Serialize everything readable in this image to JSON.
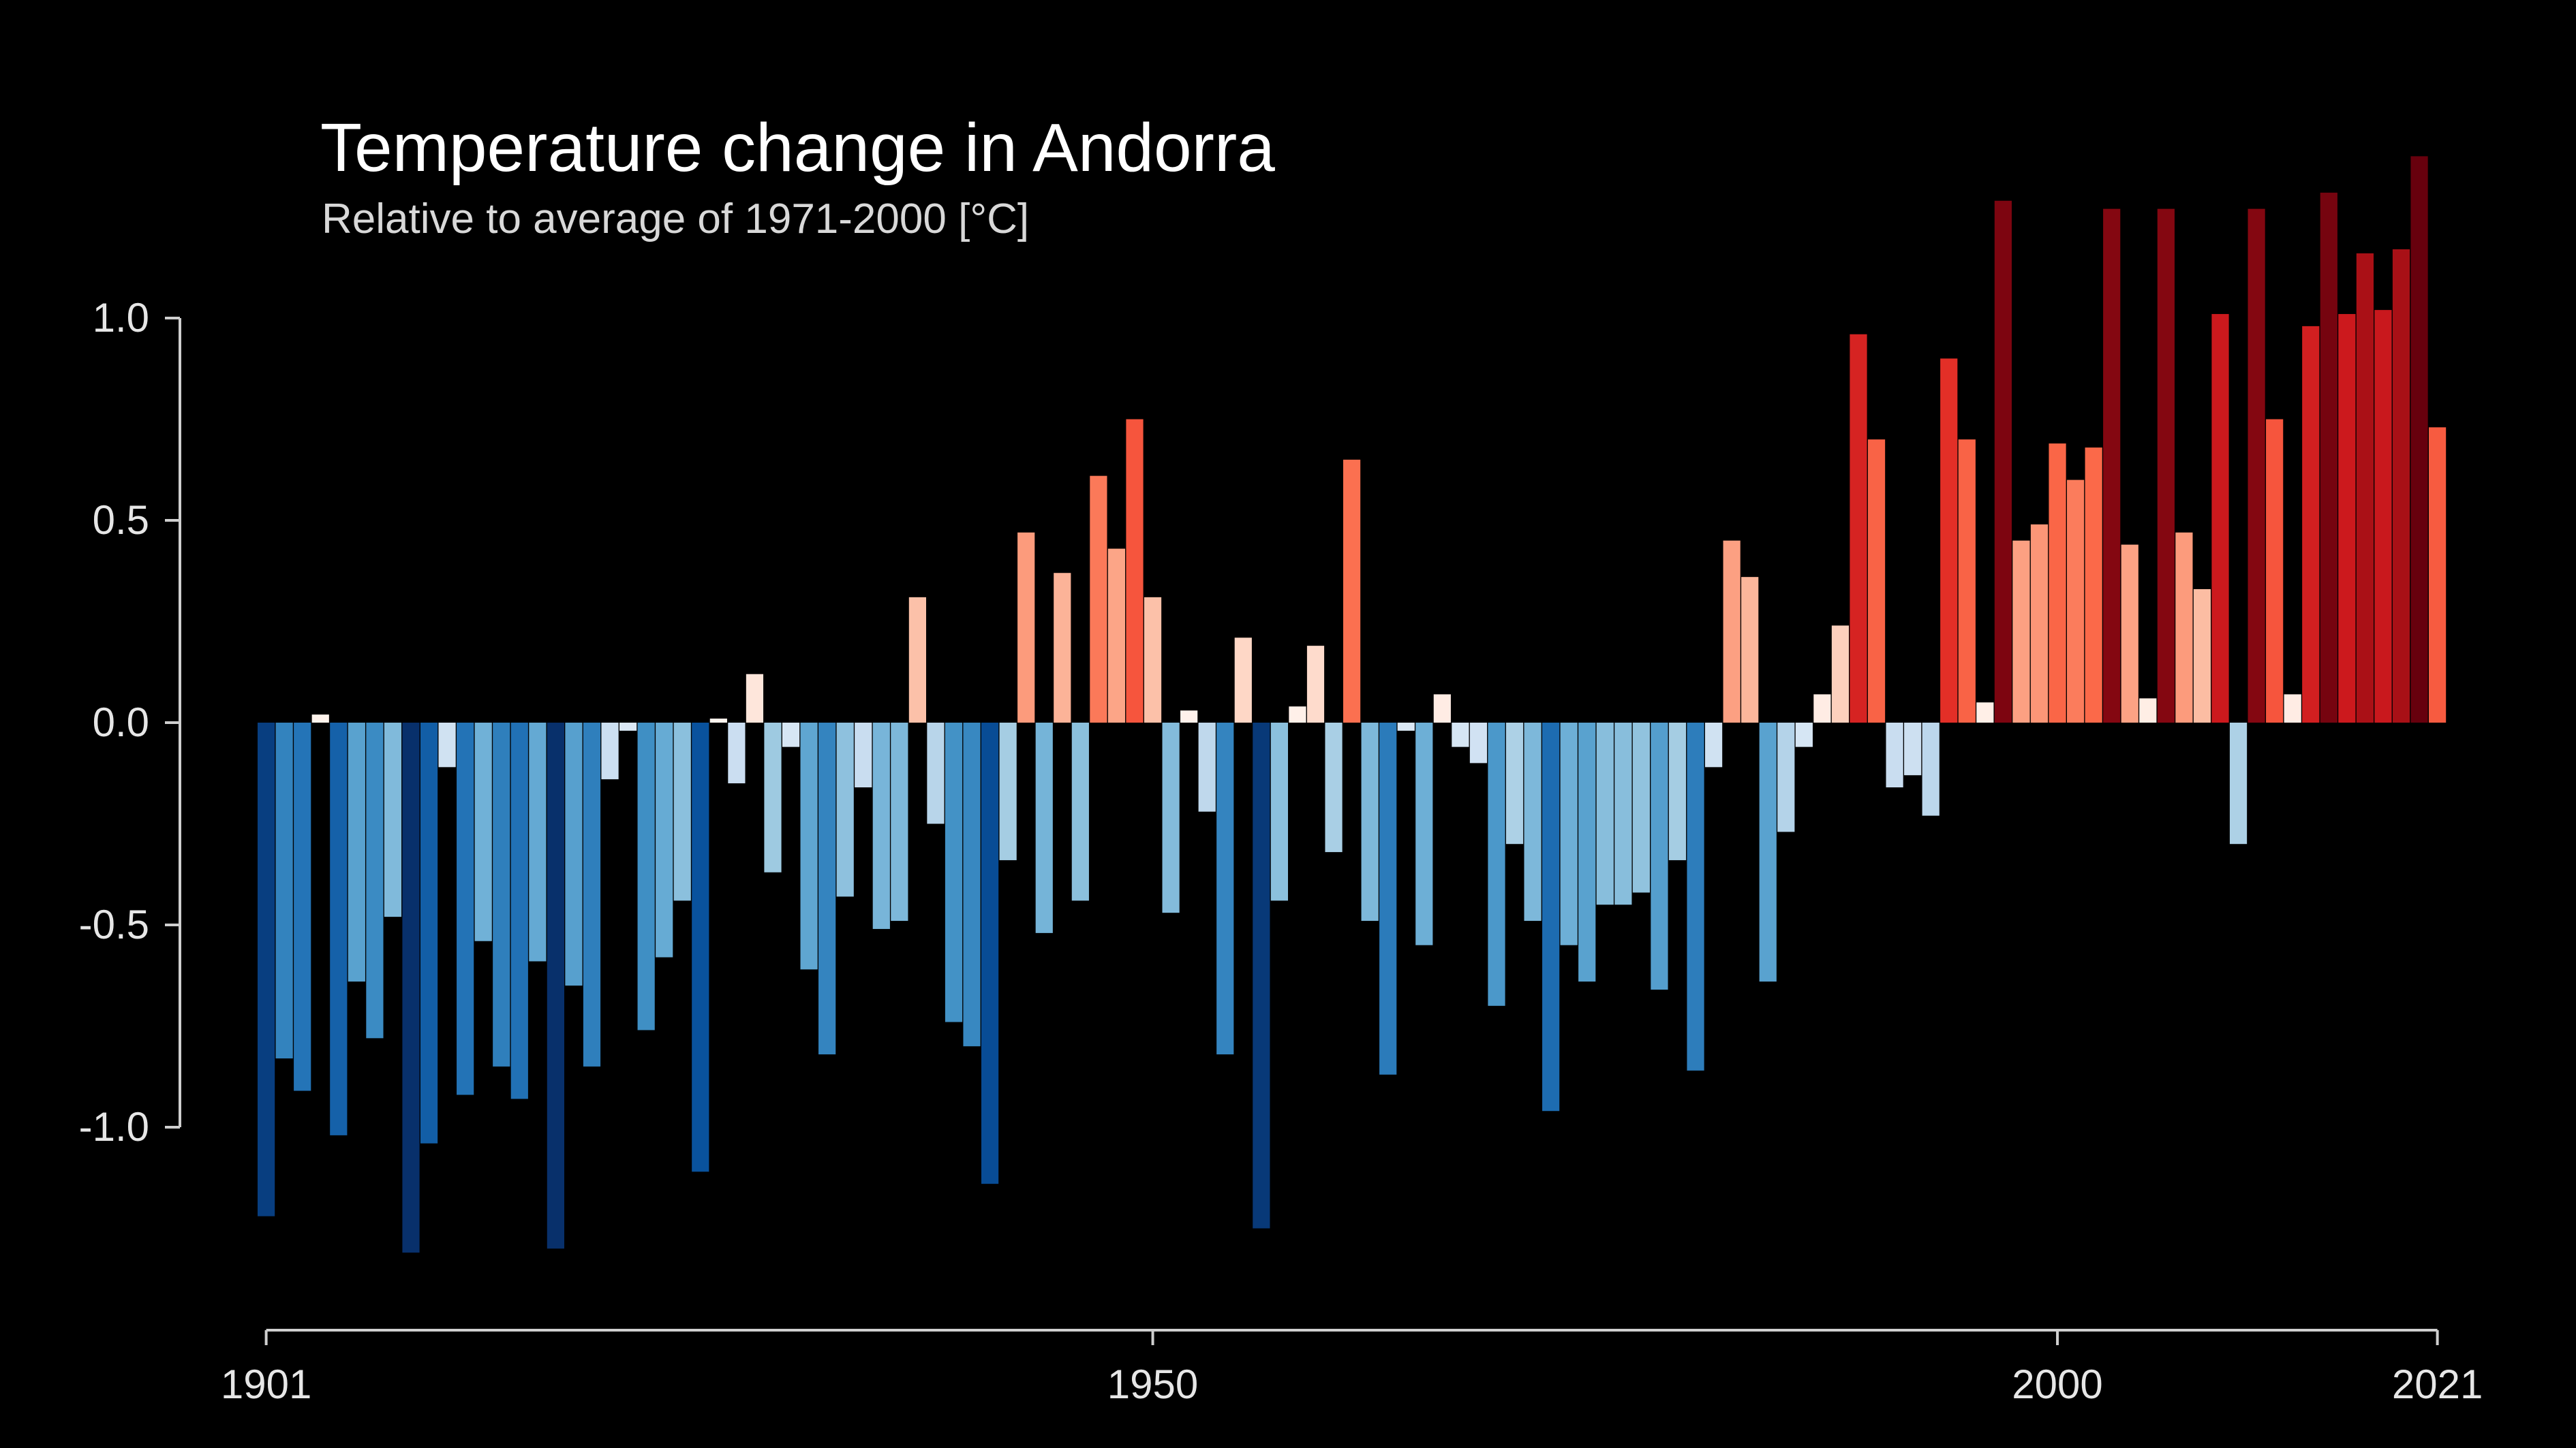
{
  "chart_data": {
    "type": "bar",
    "title": "Temperature change in Andorra",
    "subtitle": "Relative to average of 1971-2000  [°C]",
    "xlabel": "",
    "ylabel": "",
    "ylim": [
      -1.45,
      1.45
    ],
    "xlim": [
      1901,
      2021
    ],
    "y_ticks": [
      1.0,
      0.5,
      0.0,
      -0.5,
      -1.0
    ],
    "y_tick_labels": [
      "1.0",
      "0.5",
      "0.0",
      "-0.5",
      "-1.0"
    ],
    "x_ticks": [
      1901,
      1950,
      2000,
      2021
    ],
    "x_tick_labels": [
      "1901",
      "1950",
      "2000",
      "2021"
    ],
    "grid": false,
    "legend": "none",
    "series": [
      {
        "start_year": 1901,
        "end_year": 2021,
        "values": [
          -1.22,
          -0.83,
          -0.91,
          0.02,
          -1.02,
          -0.64,
          -0.78,
          -0.48,
          -1.31,
          -1.04,
          -0.11,
          -0.92,
          -0.54,
          -0.85,
          -0.93,
          -0.59,
          -1.3,
          -0.65,
          -0.85,
          -0.14,
          -0.02,
          -0.76,
          -0.58,
          -0.44,
          -1.11,
          0.01,
          -0.15,
          0.12,
          -0.37,
          -0.06,
          -0.61,
          -0.82,
          -0.43,
          -0.16,
          -0.51,
          -0.49,
          0.31,
          -0.25,
          -0.74,
          -0.8,
          -1.14,
          -0.34,
          0.47,
          -0.52,
          0.37,
          -0.44,
          0.61,
          0.43,
          0.75,
          0.31,
          -0.47,
          0.03,
          -0.22,
          -0.82,
          0.21,
          -1.25,
          -0.44,
          0.04,
          0.19,
          -0.32,
          0.65,
          -0.49,
          -0.87,
          -0.02,
          -0.55,
          0.07,
          -0.06,
          -0.1,
          -0.7,
          -0.3,
          -0.49,
          -0.96,
          -0.55,
          -0.64,
          -0.45,
          -0.45,
          -0.42,
          -0.66,
          -0.34,
          -0.86,
          -0.11,
          0.45,
          0.36,
          -0.64,
          -0.27,
          -0.06,
          0.07,
          0.24,
          0.96,
          0.7,
          -0.16,
          -0.13,
          -0.23,
          0.9,
          0.7,
          0.05,
          1.29,
          0.45,
          0.49,
          0.69,
          0.6,
          0.68,
          1.27,
          0.44,
          0.06,
          1.27,
          0.47,
          0.33,
          1.01,
          -0.3,
          1.27,
          0.75,
          0.07,
          0.98,
          1.31,
          1.01,
          1.16,
          1.02,
          1.17,
          1.4,
          0.73
        ]
      }
    ]
  }
}
